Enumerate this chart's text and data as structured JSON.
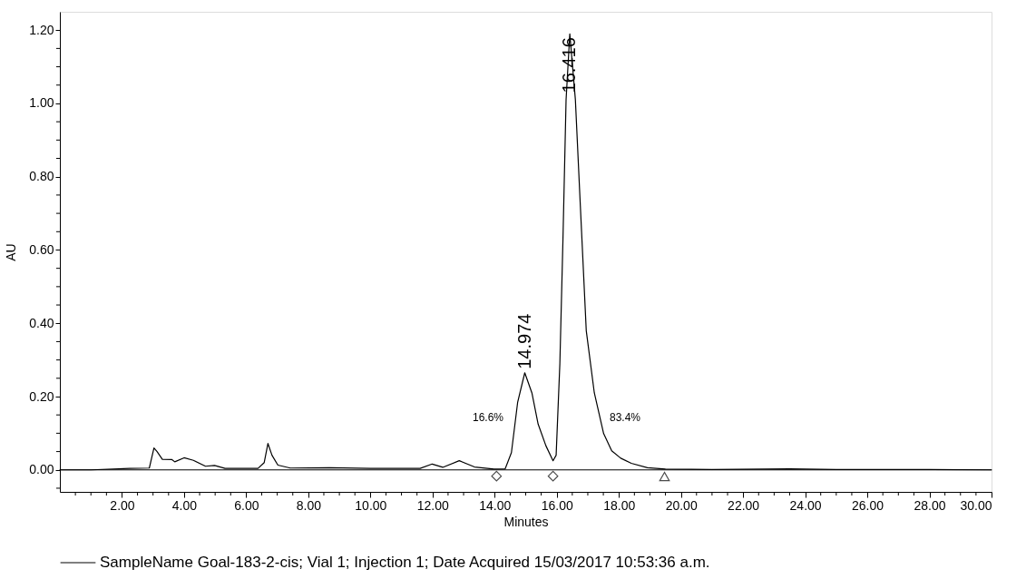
{
  "chart_data": {
    "type": "line",
    "xlabel": "Minutes",
    "ylabel": "AU",
    "xlim": [
      0,
      30
    ],
    "ylim": [
      -0.06,
      1.25
    ],
    "xticks": [
      {
        "value": 0.5,
        "label": null
      },
      {
        "value": 1,
        "label": null
      },
      {
        "value": 1.5,
        "label": null
      },
      {
        "value": 2,
        "label": "2.00"
      },
      {
        "value": 2.5,
        "label": null
      },
      {
        "value": 3,
        "label": null
      },
      {
        "value": 3.5,
        "label": null
      },
      {
        "value": 4,
        "label": "4.00"
      },
      {
        "value": 4.5,
        "label": null
      },
      {
        "value": 5,
        "label": null
      },
      {
        "value": 5.5,
        "label": null
      },
      {
        "value": 6,
        "label": "6.00"
      },
      {
        "value": 6.5,
        "label": null
      },
      {
        "value": 7,
        "label": null
      },
      {
        "value": 7.5,
        "label": null
      },
      {
        "value": 8,
        "label": "8.00"
      },
      {
        "value": 8.5,
        "label": null
      },
      {
        "value": 9,
        "label": null
      },
      {
        "value": 9.5,
        "label": null
      },
      {
        "value": 10,
        "label": "10.00"
      },
      {
        "value": 10.5,
        "label": null
      },
      {
        "value": 11,
        "label": null
      },
      {
        "value": 11.5,
        "label": null
      },
      {
        "value": 12,
        "label": "12.00"
      },
      {
        "value": 12.5,
        "label": null
      },
      {
        "value": 13,
        "label": null
      },
      {
        "value": 13.5,
        "label": null
      },
      {
        "value": 14,
        "label": "14.00"
      },
      {
        "value": 14.5,
        "label": null
      },
      {
        "value": 15,
        "label": null
      },
      {
        "value": 15.5,
        "label": null
      },
      {
        "value": 16,
        "label": "16.00"
      },
      {
        "value": 16.5,
        "label": null
      },
      {
        "value": 17,
        "label": null
      },
      {
        "value": 17.5,
        "label": null
      },
      {
        "value": 18,
        "label": "18.00"
      },
      {
        "value": 18.5,
        "label": null
      },
      {
        "value": 19,
        "label": null
      },
      {
        "value": 19.5,
        "label": null
      },
      {
        "value": 20,
        "label": "20.00"
      },
      {
        "value": 20.5,
        "label": null
      },
      {
        "value": 21,
        "label": null
      },
      {
        "value": 21.5,
        "label": null
      },
      {
        "value": 22,
        "label": "22.00"
      },
      {
        "value": 22.5,
        "label": null
      },
      {
        "value": 23,
        "label": null
      },
      {
        "value": 23.5,
        "label": null
      },
      {
        "value": 24,
        "label": "24.00"
      },
      {
        "value": 24.5,
        "label": null
      },
      {
        "value": 25,
        "label": null
      },
      {
        "value": 25.5,
        "label": null
      },
      {
        "value": 26,
        "label": "26.00"
      },
      {
        "value": 26.5,
        "label": null
      },
      {
        "value": 27,
        "label": null
      },
      {
        "value": 27.5,
        "label": null
      },
      {
        "value": 28,
        "label": "28.00"
      },
      {
        "value": 28.5,
        "label": null
      },
      {
        "value": 29,
        "label": null
      },
      {
        "value": 29.5,
        "label": null
      },
      {
        "value": 30,
        "label": "30.00"
      }
    ],
    "yticks": [
      {
        "value": -0.05,
        "label": null
      },
      {
        "value": 0,
        "label": "0.00"
      },
      {
        "value": 0.05,
        "label": null
      },
      {
        "value": 0.1,
        "label": null
      },
      {
        "value": 0.15,
        "label": null
      },
      {
        "value": 0.2,
        "label": "0.20"
      },
      {
        "value": 0.25,
        "label": null
      },
      {
        "value": 0.3,
        "label": null
      },
      {
        "value": 0.35,
        "label": null
      },
      {
        "value": 0.4,
        "label": "0.40"
      },
      {
        "value": 0.45,
        "label": null
      },
      {
        "value": 0.5,
        "label": null
      },
      {
        "value": 0.55,
        "label": null
      },
      {
        "value": 0.6,
        "label": "0.60"
      },
      {
        "value": 0.65,
        "label": null
      },
      {
        "value": 0.7,
        "label": null
      },
      {
        "value": 0.75,
        "label": null
      },
      {
        "value": 0.8,
        "label": "0.80"
      },
      {
        "value": 0.85,
        "label": null
      },
      {
        "value": 0.9,
        "label": null
      },
      {
        "value": 0.95,
        "label": null
      },
      {
        "value": 1,
        "label": "1.00"
      },
      {
        "value": 1.05,
        "label": null
      },
      {
        "value": 1.1,
        "label": null
      },
      {
        "value": 1.15,
        "label": null
      },
      {
        "value": 1.2,
        "label": "1.20"
      }
    ],
    "grid": false,
    "legend": "bottom",
    "line_style": "solid",
    "series": [
      {
        "name": "SampleName Goal-183-2-cis; Vial 1; Injection 1; Date Acquired 15/03/2017 10:53:36 a.m.",
        "color": "#000000",
        "marker": "none",
        "x": [
          0,
          1,
          2.25,
          2.88,
          3.03,
          3.13,
          3.3,
          3.61,
          3.7,
          4.0,
          4.3,
          4.69,
          4.98,
          5.32,
          6.38,
          6.58,
          6.7,
          6.83,
          7.02,
          7.42,
          8.68,
          10,
          11.6,
          11.99,
          12.33,
          12.86,
          13.35,
          13.98,
          14.34,
          14.54,
          14.74,
          14.97,
          15.2,
          15.4,
          15.65,
          15.88,
          15.98,
          16.1,
          16.2,
          16.3,
          16.42,
          16.6,
          16.76,
          16.95,
          17.21,
          17.51,
          17.77,
          18.06,
          18.4,
          18.92,
          19.5,
          21,
          23.5,
          25,
          28,
          30
        ],
        "values": [
          0,
          0,
          0.004,
          0.005,
          0.06,
          0.05,
          0.029,
          0.028,
          0.022,
          0.033,
          0.026,
          0.01,
          0.012,
          0.004,
          0.004,
          0.02,
          0.072,
          0.04,
          0.013,
          0.005,
          0.006,
          0.004,
          0.004,
          0.016,
          0.007,
          0.025,
          0.008,
          0.002,
          0.003,
          0.047,
          0.184,
          0.265,
          0.21,
          0.125,
          0.066,
          0.025,
          0.04,
          0.29,
          0.63,
          1.01,
          1.19,
          1.01,
          0.72,
          0.38,
          0.21,
          0.099,
          0.052,
          0.032,
          0.018,
          0.006,
          0.002,
          0.001,
          0.003,
          0.001,
          0.001,
          0
        ]
      },
      {
        "type": "scatter",
        "color": "#000000",
        "marker": "diamond",
        "x": [
          14.06,
          15.88
        ],
        "values": [
          -0.017,
          -0.017
        ]
      },
      {
        "type": "scatter",
        "color": "#000000",
        "marker": "triangle",
        "x": [
          19.47
        ],
        "values": [
          -0.018
        ]
      }
    ],
    "ref_lines": [
      {
        "axis": "y",
        "value": 0,
        "color": "#000000"
      }
    ],
    "annotations": [
      {
        "text": "14.974",
        "x": 14.974,
        "y": 0.265
      },
      {
        "text": "16.416",
        "x": 16.416,
        "y": 1.19
      },
      "16.6%",
      "83.4%"
    ]
  }
}
